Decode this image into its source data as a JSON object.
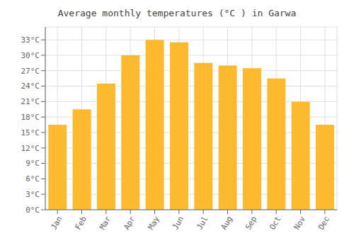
{
  "chart_data": {
    "type": "bar",
    "title": "Average monthly temperatures (°C ) in Garwa",
    "categories": [
      "Jan",
      "Feb",
      "Mar",
      "Apr",
      "May",
      "Jun",
      "Jul",
      "Aug",
      "Sep",
      "Oct",
      "Nov",
      "Dec"
    ],
    "values": [
      16.5,
      19.5,
      24.5,
      30.0,
      33.0,
      32.5,
      28.5,
      28.0,
      27.5,
      25.5,
      21.0,
      16.5
    ],
    "color": "#FDBA2E",
    "ylim": [
      0,
      35.5
    ],
    "yticks": [
      {
        "value": 0,
        "label": "0°C"
      },
      {
        "value": 3,
        "label": "3°C"
      },
      {
        "value": 6,
        "label": "6°C"
      },
      {
        "value": 9,
        "label": "9°C"
      },
      {
        "value": 12,
        "label": "12°C"
      },
      {
        "value": 15,
        "label": "15°C"
      },
      {
        "value": 18,
        "label": "18°C"
      },
      {
        "value": 21,
        "label": "21°C"
      },
      {
        "value": 24,
        "label": "24°C"
      },
      {
        "value": 27,
        "label": "27°C"
      },
      {
        "value": 30,
        "label": "30°C"
      },
      {
        "value": 33,
        "label": "33°C"
      }
    ],
    "grid": true
  }
}
